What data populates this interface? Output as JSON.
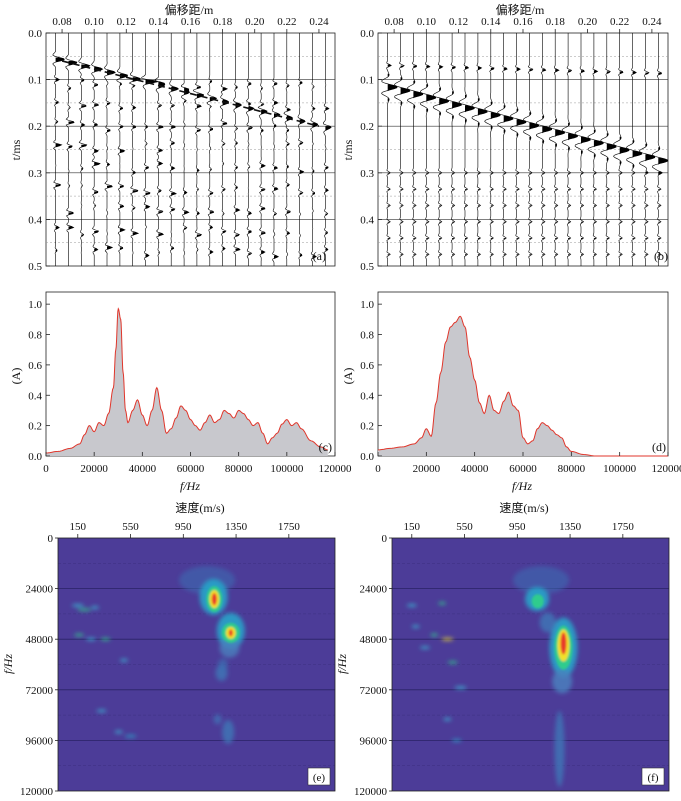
{
  "chart_data": [
    {
      "panel": "a",
      "type": "wiggle",
      "xlabel": "偏移距/m",
      "ylabel": "t/ms",
      "xlim": [
        0.07,
        0.25
      ],
      "ylim": [
        0.0,
        0.5
      ],
      "x_ticks": [
        "0.08",
        "0.10",
        "0.12",
        "0.14",
        "0.16",
        "0.18",
        "0.20",
        "0.22",
        "0.24"
      ],
      "y_ticks": [
        "0.0",
        "0.1",
        "0.2",
        "0.3",
        "0.4",
        "0.5"
      ],
      "grid_lines_t": [
        0.1,
        0.2,
        0.3,
        0.4
      ],
      "dashed_line": {
        "from": [
          0.08,
          0.06
        ],
        "to": [
          0.24,
          0.2
        ]
      },
      "label": "(a)"
    },
    {
      "panel": "b",
      "type": "wiggle",
      "xlabel": "偏移距/m",
      "ylabel": "t/ms",
      "xlim": [
        0.07,
        0.25
      ],
      "ylim": [
        0.0,
        0.5
      ],
      "x_ticks": [
        "0.08",
        "0.10",
        "0.12",
        "0.14",
        "0.16",
        "0.18",
        "0.20",
        "0.22",
        "0.24"
      ],
      "y_ticks": [
        "0.0",
        "0.1",
        "0.2",
        "0.3",
        "0.4",
        "0.5"
      ],
      "grid_lines_t": [
        0.1,
        0.2,
        0.3,
        0.4
      ],
      "label": "(b)"
    },
    {
      "panel": "c",
      "type": "area",
      "xlabel": "f/Hz",
      "ylabel": "(A)",
      "xlim": [
        0,
        120000
      ],
      "ylim": [
        0,
        1.08
      ],
      "x_ticks": [
        "0",
        "20000",
        "40000",
        "60000",
        "80000",
        "100000",
        "120000"
      ],
      "y_ticks": [
        "0.0",
        "0.2",
        "0.4",
        "0.6",
        "0.8",
        "1.0"
      ],
      "x": [
        0,
        5000,
        10000,
        14000,
        16000,
        18000,
        20000,
        22000,
        24000,
        26000,
        28000,
        29000,
        30000,
        31000,
        32000,
        33000,
        34000,
        36000,
        38000,
        40000,
        42000,
        44000,
        46000,
        48000,
        50000,
        52000,
        54000,
        56000,
        58000,
        60000,
        62000,
        64000,
        66000,
        68000,
        70000,
        72000,
        74000,
        76000,
        78000,
        80000,
        82000,
        84000,
        86000,
        88000,
        90000,
        92000,
        94000,
        96000,
        98000,
        100000,
        102000,
        104000,
        106000,
        110000,
        114000,
        117000
      ],
      "values": [
        0.02,
        0.03,
        0.05,
        0.08,
        0.14,
        0.2,
        0.16,
        0.22,
        0.2,
        0.28,
        0.45,
        0.7,
        0.97,
        0.9,
        0.55,
        0.3,
        0.22,
        0.3,
        0.37,
        0.27,
        0.2,
        0.3,
        0.45,
        0.3,
        0.15,
        0.18,
        0.25,
        0.33,
        0.3,
        0.24,
        0.2,
        0.17,
        0.22,
        0.27,
        0.22,
        0.24,
        0.3,
        0.28,
        0.25,
        0.3,
        0.28,
        0.24,
        0.2,
        0.22,
        0.15,
        0.08,
        0.12,
        0.15,
        0.21,
        0.24,
        0.2,
        0.22,
        0.18,
        0.1,
        0.06,
        0.04
      ],
      "label": "(c)"
    },
    {
      "panel": "d",
      "type": "area",
      "xlabel": "f/Hz",
      "ylabel": "(A)",
      "xlim": [
        0,
        120000
      ],
      "ylim": [
        0,
        1.08
      ],
      "x_ticks": [
        "0",
        "20000",
        "40000",
        "60000",
        "80000",
        "100000",
        "120000"
      ],
      "y_ticks": [
        "0.0",
        "0.2",
        "0.4",
        "0.6",
        "0.8",
        "1.0"
      ],
      "x": [
        0,
        5000,
        10000,
        15000,
        18000,
        20000,
        22000,
        24000,
        26000,
        28000,
        30000,
        32000,
        34000,
        36000,
        38000,
        40000,
        42000,
        44000,
        46000,
        48000,
        50000,
        52000,
        54000,
        56000,
        58000,
        60000,
        62000,
        64000,
        66000,
        68000,
        70000,
        72000,
        74000,
        76000,
        78000,
        80000,
        85000,
        90000,
        100000,
        110000,
        120000
      ],
      "values": [
        0.04,
        0.05,
        0.06,
        0.08,
        0.12,
        0.18,
        0.13,
        0.35,
        0.55,
        0.75,
        0.85,
        0.88,
        0.92,
        0.85,
        0.65,
        0.5,
        0.35,
        0.28,
        0.4,
        0.3,
        0.28,
        0.36,
        0.42,
        0.33,
        0.3,
        0.12,
        0.08,
        0.1,
        0.18,
        0.22,
        0.2,
        0.17,
        0.14,
        0.12,
        0.06,
        0.03,
        0.01,
        0.0,
        0.0,
        0.0,
        0.0
      ],
      "label": "(d)"
    },
    {
      "panel": "e",
      "type": "heatmap",
      "title": "速度(m/s)",
      "ylabel": "f/Hz",
      "xlim": [
        0,
        2100
      ],
      "ylim": [
        0,
        120000
      ],
      "x_ticks": [
        "150",
        "550",
        "950",
        "1350",
        "1750"
      ],
      "y_ticks": [
        "0",
        "24000",
        "48000",
        "72000",
        "96000",
        "120000"
      ],
      "label": "(e)"
    },
    {
      "panel": "f",
      "type": "heatmap",
      "title": "速度(m/s)",
      "ylabel": "f/Hz",
      "xlim": [
        0,
        2100
      ],
      "ylim": [
        0,
        120000
      ],
      "x_ticks": [
        "150",
        "550",
        "950",
        "1350",
        "1750"
      ],
      "y_ticks": [
        "0",
        "24000",
        "48000",
        "72000",
        "96000",
        "120000"
      ],
      "label": "(f)"
    }
  ],
  "colors": {
    "heat_background": "#4c3c98",
    "spectrum_fill": "#c8c8cd",
    "spectrum_line": "#e0362b",
    "trace": "#000000"
  }
}
